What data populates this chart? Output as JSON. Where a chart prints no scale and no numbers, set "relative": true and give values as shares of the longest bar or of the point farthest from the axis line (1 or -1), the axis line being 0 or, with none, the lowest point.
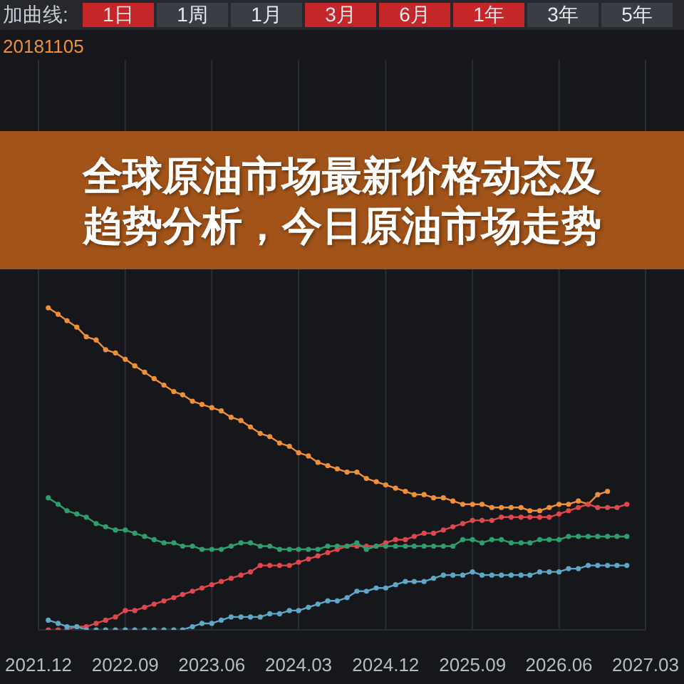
{
  "chart_data": {
    "type": "line",
    "title": "全球原油市场最新价格动态及趋势分析，今日原油市场走势",
    "relative": true,
    "annotations": [
      "加曲线:",
      "1日",
      "1周",
      "1月",
      "3月",
      "6月",
      "1年",
      "3年",
      "5年"
    ],
    "x": [
      "2022-01",
      "2022-02",
      "2022-03",
      "2022-04",
      "2022-05",
      "2022-06",
      "2022-07",
      "2022-08",
      "2022-09",
      "2022-10",
      "2022-11",
      "2022-12",
      "2023-01",
      "2023-02",
      "2023-03",
      "2023-04",
      "2023-05",
      "2023-06",
      "2023-07",
      "2023-08",
      "2023-09",
      "2023-10",
      "2023-11",
      "2023-12",
      "2024-01",
      "2024-02",
      "2024-03",
      "2024-04",
      "2024-05",
      "2024-06",
      "2024-07",
      "2024-08",
      "2024-09",
      "2024-10",
      "2024-11",
      "2024-12",
      "2025-01",
      "2025-02",
      "2025-03",
      "2025-04",
      "2025-05",
      "2025-06",
      "2025-07",
      "2025-08",
      "2025-09",
      "2025-10",
      "2025-11",
      "2025-12",
      "2026-01",
      "2026-02",
      "2026-03",
      "2026-04",
      "2026-05",
      "2026-06",
      "2026-07",
      "2026-08",
      "2026-09",
      "2026-10",
      "2026-11",
      "2026-12",
      "2027-01"
    ],
    "series": [
      {
        "name": "20181105",
        "color": "#ee8f3a",
        "values": [
          1.0,
          0.98,
          0.96,
          0.94,
          0.91,
          0.9,
          0.87,
          0.86,
          0.84,
          0.82,
          0.8,
          0.78,
          0.76,
          0.74,
          0.73,
          0.71,
          0.7,
          0.69,
          0.68,
          0.66,
          0.65,
          0.63,
          0.61,
          0.6,
          0.58,
          0.57,
          0.55,
          0.54,
          0.52,
          0.51,
          0.5,
          0.49,
          0.49,
          0.47,
          0.46,
          0.45,
          0.44,
          0.43,
          0.42,
          0.42,
          0.41,
          0.41,
          0.4,
          0.39,
          0.39,
          0.39,
          0.38,
          0.38,
          0.38,
          0.38,
          0.37,
          0.37,
          0.38,
          0.39,
          0.39,
          0.4,
          0.39,
          0.42,
          0.43,
          null,
          null
        ]
      },
      {
        "color": "#de474d",
        "values": [
          0,
          0,
          0,
          0.01,
          0.01,
          0.02,
          0.03,
          0.04,
          0.06,
          0.06,
          0.07,
          0.08,
          0.09,
          0.1,
          0.11,
          0.12,
          0.13,
          0.14,
          0.15,
          0.16,
          0.17,
          0.18,
          0.2,
          0.2,
          0.2,
          0.2,
          0.21,
          0.22,
          0.23,
          0.24,
          0.25,
          0.26,
          0.26,
          0.26,
          0.26,
          0.27,
          0.28,
          0.28,
          0.29,
          0.3,
          0.3,
          0.31,
          0.32,
          0.33,
          0.34,
          0.34,
          0.34,
          0.35,
          0.35,
          0.35,
          0.35,
          0.35,
          0.35,
          0.36,
          0.37,
          0.38,
          0.39,
          0.38,
          0.38,
          0.38,
          0.39
        ]
      },
      {
        "color": "#2f9d6c",
        "values": [
          0.41,
          0.39,
          0.37,
          0.36,
          0.35,
          0.33,
          0.32,
          0.31,
          0.31,
          0.3,
          0.29,
          0.28,
          0.27,
          0.27,
          0.26,
          0.26,
          0.25,
          0.25,
          0.25,
          0.26,
          0.27,
          0.27,
          0.26,
          0.26,
          0.25,
          0.25,
          0.25,
          0.25,
          0.25,
          0.26,
          0.26,
          0.26,
          0.27,
          0.25,
          0.26,
          0.26,
          0.26,
          0.26,
          0.26,
          0.26,
          0.26,
          0.26,
          0.26,
          0.28,
          0.28,
          0.27,
          0.28,
          0.28,
          0.27,
          0.27,
          0.27,
          0.28,
          0.28,
          0.28,
          0.29,
          0.29,
          0.29,
          0.29,
          0.29,
          0.29,
          0.29
        ]
      },
      {
        "color": "#5ea7c6",
        "values": [
          0.03,
          0.02,
          0.01,
          0.01,
          0,
          0,
          0,
          0,
          0,
          0,
          0,
          0,
          0,
          0,
          0,
          0.01,
          0.02,
          0.02,
          0.03,
          0.04,
          0.04,
          0.04,
          0.04,
          0.05,
          0.05,
          0.06,
          0.06,
          0.07,
          0.08,
          0.09,
          0.09,
          0.1,
          0.12,
          0.12,
          0.13,
          0.13,
          0.14,
          0.15,
          0.15,
          0.15,
          0.16,
          0.17,
          0.17,
          0.17,
          0.18,
          0.17,
          0.17,
          0.17,
          0.17,
          0.17,
          0.17,
          0.18,
          0.18,
          0.18,
          0.19,
          0.19,
          0.2,
          0.2,
          0.2,
          0.2,
          0.2
        ]
      }
    ],
    "xlim": [
      "2021-12",
      "2027-03"
    ],
    "xticks": [
      {
        "value": "2021-12",
        "label": "2021.12"
      },
      {
        "value": "2022-09",
        "label": "2022.09"
      },
      {
        "value": "2023-06",
        "label": "2023.06"
      },
      {
        "value": "2024-03",
        "label": "2024.03"
      },
      {
        "value": "2024-12",
        "label": "2024.12"
      },
      {
        "value": "2025-09",
        "label": "2025.09"
      },
      {
        "value": "2026-06",
        "label": "2026.06"
      },
      {
        "value": "2027-03",
        "label": "2027.03"
      }
    ],
    "grid": "x",
    "legend": "top left",
    "marker": "circle",
    "line_style": "solid"
  }
}
